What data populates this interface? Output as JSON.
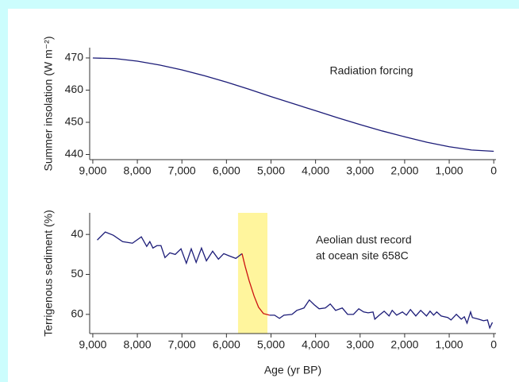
{
  "chart_data": [
    {
      "type": "line",
      "y_label": "Summer insolation (W m⁻²)",
      "annotation": [
        "Radiation forcing"
      ],
      "xlim": [
        9070,
        -50
      ],
      "ylim": [
        438.4,
        473.2
      ],
      "xticks": [
        {
          "value": 9000,
          "label": "9,000"
        },
        {
          "value": 8000,
          "label": "8,000"
        },
        {
          "value": 7000,
          "label": "7,000"
        },
        {
          "value": 6000,
          "label": "6,000"
        },
        {
          "value": 5000,
          "label": "5,000"
        },
        {
          "value": 4000,
          "label": "4,000"
        },
        {
          "value": 3000,
          "label": "3,000"
        },
        {
          "value": 2000,
          "label": "2,000"
        },
        {
          "value": 1000,
          "label": "1,000"
        },
        0
      ],
      "yticks": [
        440,
        450,
        460,
        470
      ],
      "series": [
        {
          "color": "#1c1c78",
          "x": [
            9000,
            8500,
            8000,
            7500,
            7000,
            6500,
            6000,
            5500,
            5000,
            4500,
            4000,
            3500,
            3000,
            2500,
            2000,
            1500,
            1000,
            500,
            0
          ],
          "values": [
            470,
            469.8,
            469,
            467.8,
            466.3,
            464.5,
            462.5,
            460.3,
            458,
            455.8,
            453.6,
            451.4,
            449.3,
            447.3,
            445.5,
            443.8,
            442.4,
            441.4,
            441
          ]
        }
      ]
    },
    {
      "type": "line",
      "x_label": "Age (yr BP)",
      "y_label": "Terrigenous sediment (%)",
      "annotation": [
        "Aeolian dust record",
        "at ocean site 658C"
      ],
      "xlim": [
        9070,
        -50
      ],
      "ylim": [
        64.8,
        34.6
      ],
      "highlight_x": [
        5740,
        5080
      ],
      "highlight_color": "#fff59d",
      "xticks": [
        {
          "value": 9000,
          "label": "9,000"
        },
        {
          "value": 8000,
          "label": "8,000"
        },
        {
          "value": 7000,
          "label": "7,000"
        },
        {
          "value": 6000,
          "label": "6,000"
        },
        {
          "value": 5000,
          "label": "5,000"
        },
        {
          "value": 4000,
          "label": "4,000"
        },
        {
          "value": 3000,
          "label": "3,000"
        },
        {
          "value": 2000,
          "label": "2,000"
        },
        {
          "value": 1000,
          "label": "1,000"
        },
        0
      ],
      "yticks": [
        40,
        50,
        60
      ],
      "series": [
        {
          "color": "#1c1c78",
          "x": [
            8900,
            8720,
            8540,
            8330,
            8110,
            7910,
            7790,
            7720,
            7650,
            7560,
            7470,
            7380,
            7270,
            7150,
            7020,
            6900,
            6790,
            6680,
            6560,
            6450,
            6310,
            6180,
            6060,
            5930,
            5790,
            5650,
            5300,
            5030,
            4920,
            4810,
            4710,
            4530,
            4420,
            4260,
            4140,
            4030,
            3920,
            3780,
            3670,
            3550,
            3400,
            3280,
            3150,
            3030,
            2920,
            2820,
            2710,
            2670,
            2570,
            2460,
            2350,
            2280,
            2180,
            2050,
            1960,
            1870,
            1750,
            1640,
            1510,
            1430,
            1350,
            1280,
            1180,
            1030,
            960,
            840,
            730,
            660,
            600,
            520,
            480,
            340,
            230,
            140,
            90,
            30
          ],
          "values": [
            41.4,
            39.4,
            40.2,
            41.8,
            42.2,
            40.6,
            43,
            41.8,
            43.4,
            42.8,
            42.8,
            45.8,
            44.6,
            45,
            43.6,
            47.2,
            43.6,
            47,
            43.4,
            46.6,
            44.2,
            46.2,
            44.8,
            45.4,
            46,
            44.8,
            null,
            60.2,
            60.2,
            61,
            60.2,
            60,
            59,
            58.4,
            56.4,
            57.6,
            58.6,
            58.4,
            57.4,
            59,
            58.4,
            60,
            60,
            58.6,
            59.4,
            59.6,
            59.4,
            61.2,
            60.2,
            59.2,
            60.4,
            59,
            60.2,
            59.4,
            60.2,
            58.8,
            60.4,
            59,
            60.4,
            59.2,
            60.2,
            59.4,
            60.4,
            60.8,
            61.4,
            60,
            61.2,
            60.6,
            62.2,
            59.4,
            60.8,
            61.2,
            61.6,
            61.4,
            63.4,
            62
          ]
        },
        {
          "color": "#cc1111",
          "x": [
            5650,
            5580,
            5490,
            5380,
            5280,
            5170,
            5030
          ],
          "values": [
            44.8,
            48,
            51.6,
            55.4,
            58.2,
            59.8,
            60.2
          ]
        }
      ]
    }
  ]
}
